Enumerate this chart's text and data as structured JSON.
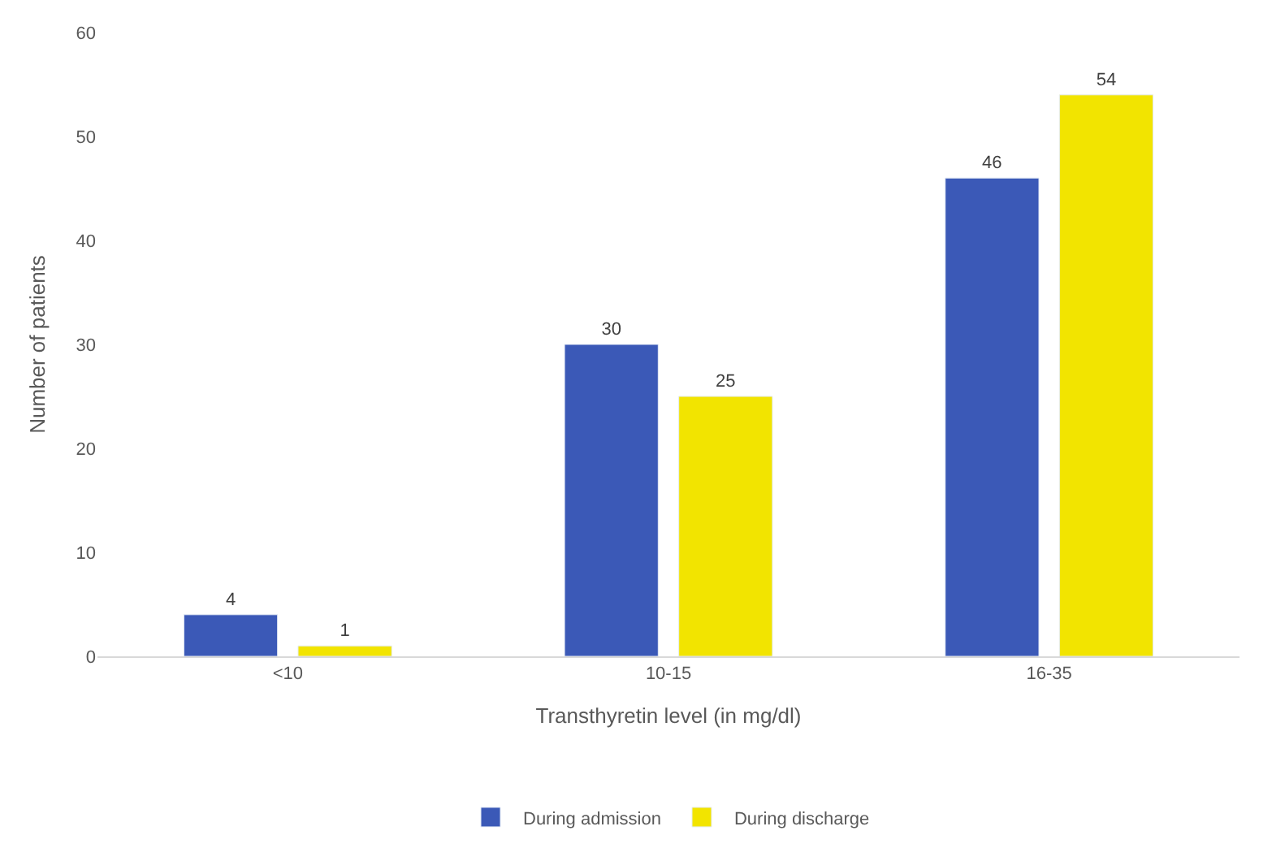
{
  "chart_data": {
    "type": "bar",
    "xlabel": "Transthyretin level (in mg/dl)",
    "ylabel": "Number of patients",
    "categories": [
      "<10",
      "10-15",
      "16-35"
    ],
    "series": [
      {
        "name": "During admission",
        "color": "#3b59b7",
        "values": [
          4,
          30,
          46
        ]
      },
      {
        "name": "During discharge",
        "color": "#f2e400",
        "values": [
          1,
          25,
          54
        ]
      }
    ],
    "ylim": [
      0,
      60
    ],
    "yticks": [
      0,
      10,
      20,
      30,
      40,
      50,
      60
    ],
    "grid": false,
    "legend": "bottom",
    "data_labels": true
  }
}
